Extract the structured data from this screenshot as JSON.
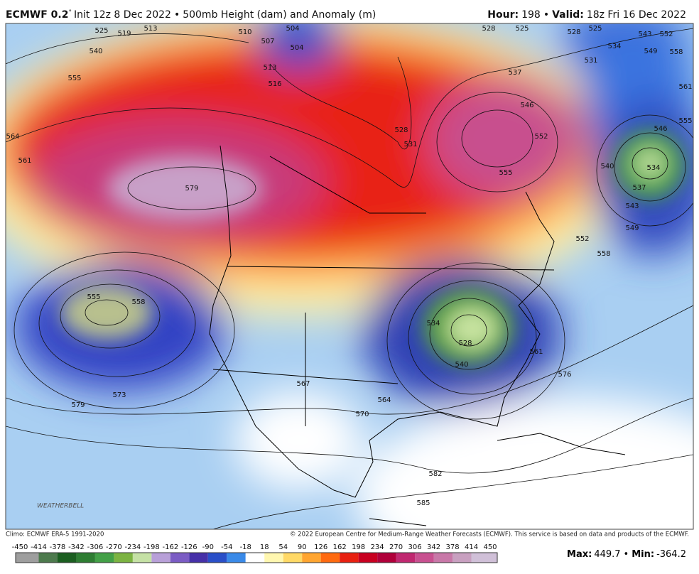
{
  "header": {
    "model": "ECMWF 0.2",
    "degree": "°",
    "init": "Init 12z 8 Dec 2022",
    "separator": "•",
    "product": "500mb Height (dam) and Anomaly (m)",
    "hour_label": "Hour:",
    "hour": "198",
    "valid_label": "Valid:",
    "valid": "18z Fri 16 Dec 2022"
  },
  "map": {
    "contour_labels": [
      "525",
      "519",
      "513",
      "510",
      "507",
      "504",
      "504",
      "540",
      "555",
      "564",
      "561",
      "579",
      "513",
      "516",
      "528",
      "531",
      "537",
      "546",
      "552",
      "555",
      "528",
      "525",
      "528",
      "525",
      "531",
      "534",
      "543",
      "549",
      "552",
      "558",
      "561",
      "555",
      "546",
      "534",
      "540",
      "537",
      "543",
      "549",
      "552",
      "558",
      "555",
      "558",
      "573",
      "579",
      "567",
      "564",
      "570",
      "582",
      "585",
      "528",
      "540",
      "534",
      "561",
      "576"
    ]
  },
  "logo": "WEATHERBELL",
  "footer": {
    "climo": "Climo: ECMWF ERA-5 1991-2020",
    "copyright": "© 2022 European Centre for Medium-Range Weather Forecasts (ECMWF). This service is based on data and products of the ECMWF.",
    "max_label": "Max:",
    "max": "449.7",
    "min_label": "Min:",
    "min": "-364.2"
  },
  "colorbar": {
    "ticks": [
      -450,
      -414,
      -378,
      -342,
      -306,
      -270,
      -234,
      -198,
      -162,
      -126,
      -90,
      -54,
      -18,
      18,
      54,
      90,
      126,
      162,
      198,
      234,
      270,
      306,
      342,
      378,
      414,
      450
    ],
    "colors": [
      "#9e9e9e",
      "#4d7a4d",
      "#1b5e20",
      "#2e7d32",
      "#43a047",
      "#7cb342",
      "#c5e1a5",
      "#b8a0d8",
      "#7b5cc4",
      "#4630a8",
      "#2a4fc8",
      "#3a8ae8",
      "#ffffff",
      "#fff7b0",
      "#ffd966",
      "#ffa530",
      "#ff6a10",
      "#e82010",
      "#c80020",
      "#b0003a",
      "#c02870",
      "#c85090",
      "#c878a8",
      "#c8a0c0",
      "#d0c0d8"
    ]
  }
}
